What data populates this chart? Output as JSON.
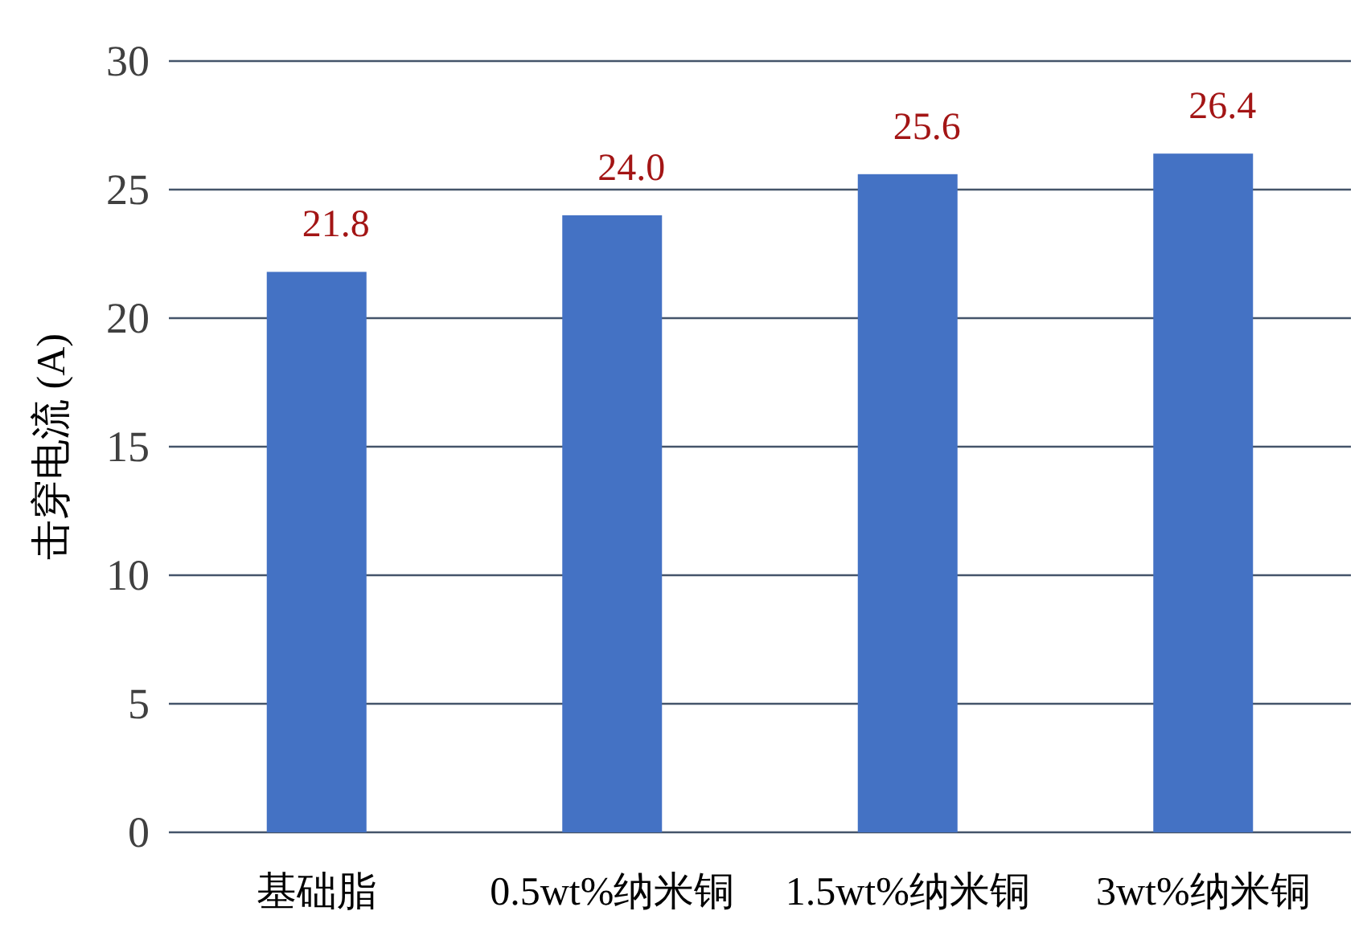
{
  "chart_data": {
    "type": "bar",
    "ylabel": "击穿电流 (A)",
    "categories": [
      "基础脂",
      "0.5wt%纳米铜",
      "1.5wt%纳米铜",
      "3wt%纳米铜"
    ],
    "values": [
      21.8,
      24.0,
      25.6,
      26.4
    ],
    "value_labels": [
      "21.8",
      "24.0",
      "25.6",
      "26.4"
    ],
    "color": "#4472c4",
    "ylim": [
      0,
      30
    ],
    "yticks": [
      0,
      5,
      10,
      15,
      20,
      25,
      30
    ],
    "grid": "y"
  }
}
